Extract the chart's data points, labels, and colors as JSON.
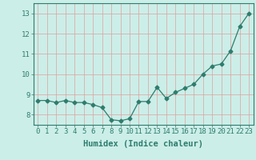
{
  "x": [
    0,
    1,
    2,
    3,
    4,
    5,
    6,
    7,
    8,
    9,
    10,
    11,
    12,
    13,
    14,
    15,
    16,
    17,
    18,
    19,
    20,
    21,
    22,
    23
  ],
  "y": [
    8.7,
    8.7,
    8.6,
    8.7,
    8.6,
    8.6,
    8.5,
    8.35,
    7.75,
    7.7,
    7.8,
    8.65,
    8.65,
    9.35,
    8.8,
    9.1,
    9.3,
    9.5,
    10.0,
    10.4,
    10.5,
    11.15,
    12.35,
    13.0
  ],
  "line_color": "#2e7d6e",
  "marker": "D",
  "marker_size": 2.5,
  "bg_color": "#cceee8",
  "grid_color": "#dda0a0",
  "xlabel": "Humidex (Indice chaleur)",
  "xlim": [
    -0.5,
    23.5
  ],
  "ylim": [
    7.5,
    13.5
  ],
  "yticks": [
    8,
    9,
    10,
    11,
    12,
    13
  ],
  "xticks": [
    0,
    1,
    2,
    3,
    4,
    5,
    6,
    7,
    8,
    9,
    10,
    11,
    12,
    13,
    14,
    15,
    16,
    17,
    18,
    19,
    20,
    21,
    22,
    23
  ],
  "xlabel_fontsize": 7.5,
  "tick_fontsize": 6.5,
  "tick_color": "#2e7d6e",
  "label_color": "#2e7d6e",
  "spine_color": "#2e7d6e"
}
